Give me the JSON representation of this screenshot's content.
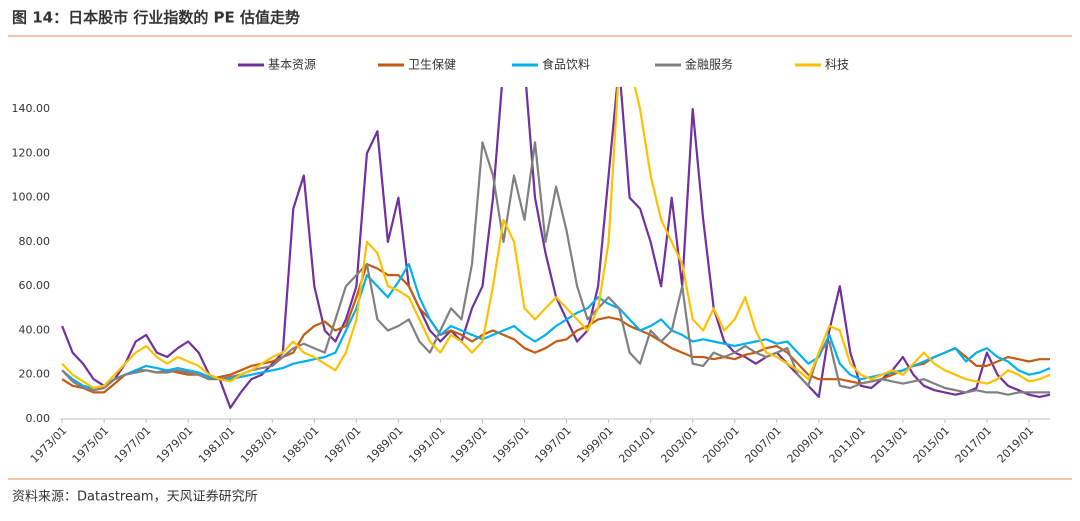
{
  "chart_data": {
    "type": "line",
    "title": "图 14：日本股市 行业指数的 PE 估值走势",
    "source": "资料来源：Datastream，天风证券研究所",
    "x": [
      1973,
      1973.5,
      1974,
      1974.5,
      1975,
      1975.5,
      1976,
      1976.5,
      1977,
      1977.5,
      1978,
      1978.5,
      1979,
      1979.5,
      1980,
      1980.5,
      1981,
      1981.5,
      1982,
      1982.5,
      1983,
      1983.5,
      1984,
      1984.5,
      1985,
      1985.5,
      1986,
      1986.5,
      1987,
      1987.5,
      1988,
      1988.5,
      1989,
      1989.5,
      1990,
      1990.5,
      1991,
      1991.5,
      1992,
      1992.5,
      1993,
      1993.5,
      1994,
      1994.5,
      1995,
      1995.5,
      1996,
      1996.5,
      1997,
      1997.5,
      1998,
      1998.5,
      1999,
      1999.5,
      2000,
      2000.5,
      2001,
      2001.5,
      2002,
      2002.5,
      2003,
      2003.5,
      2004,
      2004.5,
      2005,
      2005.5,
      2006,
      2006.5,
      2007,
      2007.5,
      2008,
      2008.5,
      2009,
      2009.5,
      2010,
      2010.5,
      2011,
      2011.5,
      2012,
      2012.5,
      2013,
      2013.5,
      2014,
      2014.5,
      2015,
      2015.5,
      2016,
      2016.5,
      2017,
      2017.5,
      2018,
      2018.5,
      2019,
      2019.5,
      2020
    ],
    "series": [
      {
        "name": "基本资源",
        "color": "#7030a0",
        "values": [
          42,
          30,
          25,
          18,
          15,
          18,
          25,
          35,
          38,
          30,
          28,
          32,
          35,
          30,
          20,
          18,
          5,
          12,
          18,
          20,
          25,
          30,
          95,
          110,
          60,
          40,
          35,
          45,
          60,
          120,
          130,
          80,
          100,
          60,
          50,
          40,
          35,
          40,
          35,
          50,
          60,
          100,
          160,
          160,
          160,
          100,
          75,
          55,
          45,
          35,
          40,
          60,
          110,
          160,
          100,
          95,
          80,
          60,
          100,
          60,
          140,
          90,
          50,
          35,
          30,
          28,
          25,
          28,
          30,
          25,
          20,
          15,
          10,
          40,
          60,
          30,
          15,
          14,
          18,
          22,
          28,
          20,
          15,
          13,
          12,
          11,
          12,
          14,
          30,
          20,
          15,
          13,
          11,
          10,
          11
        ]
      },
      {
        "name": "卫生保健",
        "color": "#c55a11",
        "values": [
          18,
          15,
          14,
          12,
          12,
          16,
          20,
          22,
          22,
          21,
          22,
          21,
          20,
          20,
          18,
          19,
          20,
          22,
          24,
          25,
          26,
          28,
          30,
          38,
          42,
          44,
          40,
          42,
          55,
          70,
          68,
          65,
          65,
          60,
          50,
          45,
          38,
          40,
          38,
          35,
          38,
          40,
          38,
          36,
          32,
          30,
          32,
          35,
          36,
          40,
          42,
          45,
          46,
          45,
          42,
          40,
          38,
          35,
          32,
          30,
          28,
          28,
          27,
          28,
          27,
          29,
          30,
          32,
          33,
          30,
          25,
          20,
          18,
          18,
          18,
          17,
          16,
          17,
          18,
          20,
          22,
          24,
          25,
          28,
          30,
          32,
          28,
          24,
          24,
          26,
          28,
          27,
          26,
          27,
          27
        ]
      },
      {
        "name": "食品饮料",
        "color": "#00b0f0",
        "values": [
          22,
          18,
          15,
          14,
          15,
          18,
          20,
          22,
          24,
          23,
          22,
          23,
          22,
          21,
          19,
          18,
          18,
          19,
          20,
          21,
          22,
          23,
          25,
          26,
          27,
          28,
          30,
          40,
          50,
          65,
          60,
          55,
          62,
          70,
          55,
          45,
          38,
          42,
          40,
          38,
          36,
          38,
          40,
          42,
          38,
          35,
          38,
          42,
          45,
          48,
          50,
          55,
          52,
          50,
          45,
          40,
          42,
          45,
          40,
          38,
          35,
          36,
          35,
          34,
          33,
          34,
          35,
          36,
          34,
          35,
          30,
          25,
          28,
          38,
          25,
          20,
          18,
          19,
          20,
          21,
          22,
          24,
          26,
          28,
          30,
          32,
          26,
          30,
          32,
          28,
          26,
          22,
          20,
          21,
          23
        ]
      },
      {
        "name": "金融服务",
        "color": "#808080",
        "values": [
          22,
          17,
          14,
          13,
          14,
          18,
          20,
          21,
          22,
          21,
          21,
          22,
          21,
          20,
          18,
          18,
          19,
          20,
          22,
          23,
          24,
          28,
          32,
          34,
          32,
          30,
          45,
          60,
          65,
          70,
          45,
          40,
          42,
          45,
          35,
          30,
          40,
          50,
          45,
          70,
          125,
          110,
          80,
          110,
          90,
          125,
          80,
          105,
          85,
          60,
          45,
          50,
          55,
          50,
          30,
          25,
          40,
          35,
          40,
          60,
          25,
          24,
          30,
          28,
          30,
          33,
          30,
          28,
          30,
          32,
          20,
          15,
          30,
          35,
          15,
          14,
          16,
          17,
          18,
          17,
          16,
          17,
          18,
          16,
          14,
          13,
          12,
          13,
          12,
          12,
          11,
          12,
          12,
          12,
          12
        ]
      },
      {
        "name": "科技",
        "color": "#ffc000",
        "values": [
          25,
          20,
          17,
          14,
          15,
          20,
          25,
          30,
          33,
          28,
          25,
          28,
          26,
          24,
          20,
          18,
          17,
          20,
          22,
          25,
          28,
          30,
          35,
          30,
          28,
          25,
          22,
          30,
          45,
          80,
          75,
          60,
          58,
          55,
          45,
          35,
          30,
          38,
          35,
          30,
          35,
          60,
          90,
          80,
          50,
          45,
          50,
          55,
          50,
          45,
          40,
          50,
          80,
          160,
          160,
          140,
          110,
          90,
          80,
          70,
          45,
          40,
          50,
          40,
          45,
          55,
          40,
          30,
          28,
          25,
          22,
          18,
          30,
          42,
          40,
          25,
          20,
          18,
          20,
          22,
          20,
          25,
          30,
          25,
          22,
          20,
          18,
          17,
          16,
          18,
          22,
          20,
          17,
          18,
          20
        ]
      }
    ],
    "xlim": [
      1972.9,
      2020
    ],
    "xticks": [
      {
        "value": 1973,
        "label": "1973/01"
      },
      {
        "value": 1975,
        "label": "1975/01"
      },
      {
        "value": 1977,
        "label": "1977/01"
      },
      {
        "value": 1979,
        "label": "1979/01"
      },
      {
        "value": 1981,
        "label": "1981/01"
      },
      {
        "value": 1983,
        "label": "1983/01"
      },
      {
        "value": 1985,
        "label": "1985/01"
      },
      {
        "value": 1987,
        "label": "1987/01"
      },
      {
        "value": 1989,
        "label": "1989/01"
      },
      {
        "value": 1991,
        "label": "1991/01"
      },
      {
        "value": 1993,
        "label": "1993/01"
      },
      {
        "value": 1995,
        "label": "1995/01"
      },
      {
        "value": 1997,
        "label": "1997/01"
      },
      {
        "value": 1999,
        "label": "1999/01"
      },
      {
        "value": 2001,
        "label": "2001/01"
      },
      {
        "value": 2003,
        "label": "2003/01"
      },
      {
        "value": 2005,
        "label": "2005/01"
      },
      {
        "value": 2007,
        "label": "2007/01"
      },
      {
        "value": 2009,
        "label": "2009/01"
      },
      {
        "value": 2011,
        "label": "2011/01"
      },
      {
        "value": 2013,
        "label": "2013/01"
      },
      {
        "value": 2015,
        "label": "2015/01"
      },
      {
        "value": 2017,
        "label": "2017/01"
      },
      {
        "value": 2019,
        "label": "2019/01"
      }
    ],
    "ylim": [
      0,
      150
    ],
    "yticks": [
      {
        "value": 0,
        "label": "0.00"
      },
      {
        "value": 20,
        "label": "20.00"
      },
      {
        "value": 40,
        "label": "40.00"
      },
      {
        "value": 60,
        "label": "60.00"
      },
      {
        "value": 80,
        "label": "80.00"
      },
      {
        "value": 100,
        "label": "100.00"
      },
      {
        "value": 120,
        "label": "120.00"
      },
      {
        "value": 140,
        "label": "140.00"
      }
    ],
    "legend": "top",
    "grid": false
  }
}
